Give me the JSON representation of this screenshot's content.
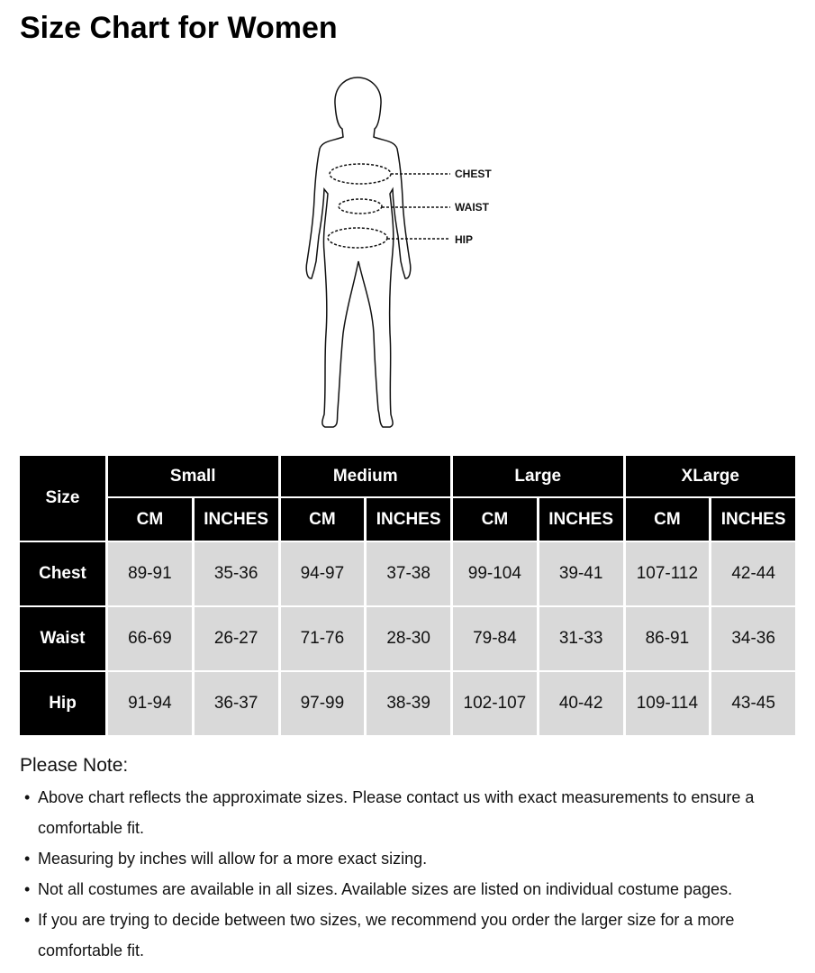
{
  "title": "Size Chart for Women",
  "figure": {
    "labels": [
      "CHEST",
      "WAIST",
      "HIP"
    ]
  },
  "table": {
    "corner": "Size",
    "sizes": [
      "Small",
      "Medium",
      "Large",
      "XLarge"
    ],
    "units": [
      "CM",
      "INCHES"
    ],
    "rows": [
      {
        "label": "Chest",
        "values": [
          "89-91",
          "35-36",
          "94-97",
          "37-38",
          "99-104",
          "39-41",
          "107-112",
          "42-44"
        ]
      },
      {
        "label": "Waist",
        "values": [
          "66-69",
          "26-27",
          "71-76",
          "28-30",
          "79-84",
          "31-33",
          "86-91",
          "34-36"
        ]
      },
      {
        "label": "Hip",
        "values": [
          "91-94",
          "36-37",
          "97-99",
          "38-39",
          "102-107",
          "40-42",
          "109-114",
          "43-45"
        ]
      }
    ]
  },
  "notes": {
    "title": "Please Note:",
    "bullet": "•",
    "items": [
      "Above chart reflects the approximate sizes. Please contact us with exact measurements to ensure a comfortable fit.",
      "Measuring by inches will allow for a more exact sizing.",
      "Not all costumes are available in all sizes. Available sizes are listed on individual costume pages.",
      "If you are trying to decide between two sizes, we recommend you order the larger size for a more comfortable fit."
    ]
  }
}
